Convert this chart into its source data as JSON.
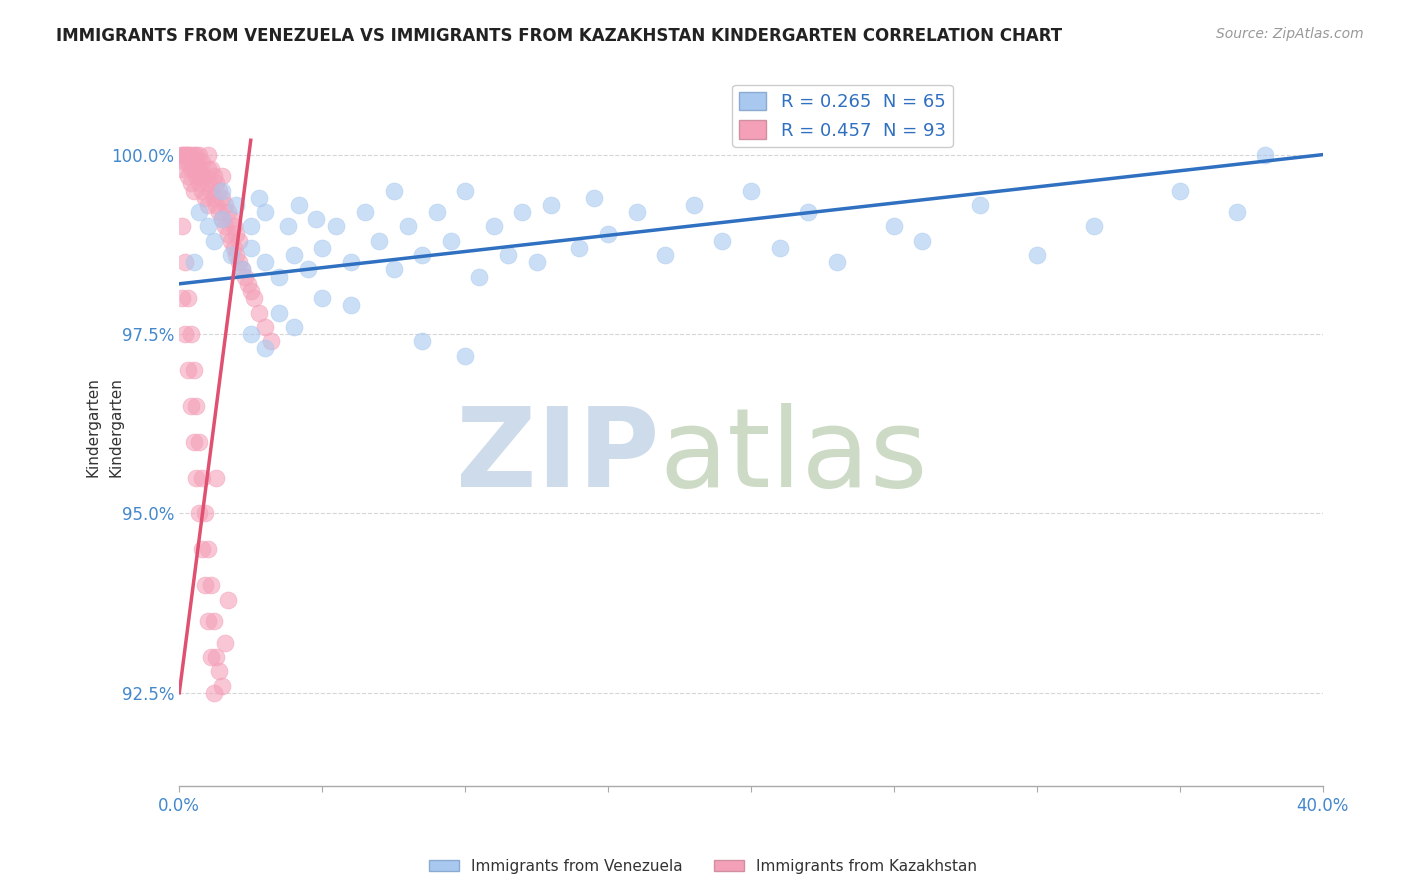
{
  "title": "IMMIGRANTS FROM VENEZUELA VS IMMIGRANTS FROM KAZAKHSTAN KINDERGARTEN CORRELATION CHART",
  "source": "Source: ZipAtlas.com",
  "ylabel": "Kindergarten",
  "yticks": [
    92.5,
    95.0,
    97.5,
    100.0
  ],
  "ytick_labels": [
    "92.5%",
    "95.0%",
    "97.5%",
    "100.0%"
  ],
  "xmin": 0.0,
  "xmax": 0.4,
  "ymin": 91.2,
  "ymax": 101.2,
  "legend1_label": "R = 0.265  N = 65",
  "legend2_label": "R = 0.457  N = 93",
  "legend_label1": "Immigrants from Venezuela",
  "legend_label2": "Immigrants from Kazakhstan",
  "color_venezuela": "#a8c8f0",
  "color_kazakhstan": "#f4a0b8",
  "trendline_color_venezuela": "#3070c0",
  "trendline_color_kazakhstan": "#e05070",
  "venezuela_trendline_x": [
    0.0,
    0.4
  ],
  "venezuela_trendline_y": [
    98.2,
    100.0
  ],
  "kazakhstan_trendline_x": [
    0.0,
    0.025
  ],
  "kazakhstan_trendline_y": [
    92.5,
    100.2
  ],
  "venezuela_x": [
    0.005,
    0.007,
    0.01,
    0.012,
    0.015,
    0.015,
    0.018,
    0.02,
    0.022,
    0.025,
    0.025,
    0.028,
    0.03,
    0.03,
    0.035,
    0.038,
    0.04,
    0.042,
    0.045,
    0.048,
    0.05,
    0.055,
    0.06,
    0.065,
    0.07,
    0.075,
    0.075,
    0.08,
    0.085,
    0.09,
    0.095,
    0.1,
    0.105,
    0.11,
    0.115,
    0.12,
    0.125,
    0.13,
    0.14,
    0.145,
    0.15,
    0.16,
    0.17,
    0.18,
    0.19,
    0.2,
    0.21,
    0.22,
    0.23,
    0.25,
    0.26,
    0.28,
    0.3,
    0.32,
    0.35,
    0.37,
    0.025,
    0.03,
    0.035,
    0.04,
    0.05,
    0.06,
    0.085,
    0.1,
    0.38
  ],
  "venezuela_y": [
    98.5,
    99.2,
    99.0,
    98.8,
    99.5,
    99.1,
    98.6,
    99.3,
    98.4,
    99.0,
    98.7,
    99.4,
    98.5,
    99.2,
    98.3,
    99.0,
    98.6,
    99.3,
    98.4,
    99.1,
    98.7,
    99.0,
    98.5,
    99.2,
    98.8,
    98.4,
    99.5,
    99.0,
    98.6,
    99.2,
    98.8,
    99.5,
    98.3,
    99.0,
    98.6,
    99.2,
    98.5,
    99.3,
    98.7,
    99.4,
    98.9,
    99.2,
    98.6,
    99.3,
    98.8,
    99.5,
    98.7,
    99.2,
    98.5,
    99.0,
    98.8,
    99.3,
    98.6,
    99.0,
    99.5,
    99.2,
    97.5,
    97.3,
    97.8,
    97.6,
    98.0,
    97.9,
    97.4,
    97.2,
    100.0
  ],
  "kazakhstan_x": [
    0.001,
    0.001,
    0.001,
    0.002,
    0.002,
    0.002,
    0.003,
    0.003,
    0.003,
    0.003,
    0.004,
    0.004,
    0.004,
    0.005,
    0.005,
    0.005,
    0.005,
    0.006,
    0.006,
    0.006,
    0.007,
    0.007,
    0.007,
    0.008,
    0.008,
    0.008,
    0.009,
    0.009,
    0.01,
    0.01,
    0.01,
    0.01,
    0.011,
    0.011,
    0.012,
    0.012,
    0.013,
    0.013,
    0.014,
    0.014,
    0.015,
    0.015,
    0.015,
    0.016,
    0.016,
    0.017,
    0.017,
    0.018,
    0.018,
    0.019,
    0.019,
    0.02,
    0.02,
    0.021,
    0.021,
    0.022,
    0.023,
    0.024,
    0.025,
    0.026,
    0.028,
    0.03,
    0.032,
    0.001,
    0.002,
    0.003,
    0.004,
    0.005,
    0.006,
    0.007,
    0.008,
    0.009,
    0.01,
    0.011,
    0.012,
    0.013,
    0.001,
    0.002,
    0.003,
    0.004,
    0.005,
    0.006,
    0.007,
    0.008,
    0.009,
    0.01,
    0.011,
    0.012,
    0.013,
    0.014,
    0.015,
    0.016,
    0.017
  ],
  "kazakhstan_y": [
    100.0,
    99.8,
    100.0,
    100.0,
    99.9,
    100.0,
    100.0,
    99.7,
    99.9,
    100.0,
    99.8,
    100.0,
    99.6,
    99.9,
    100.0,
    99.5,
    99.8,
    99.7,
    99.9,
    100.0,
    99.6,
    99.8,
    100.0,
    99.5,
    99.7,
    99.9,
    99.4,
    99.7,
    99.3,
    99.6,
    99.8,
    100.0,
    99.5,
    99.8,
    99.4,
    99.7,
    99.3,
    99.6,
    99.2,
    99.5,
    99.1,
    99.4,
    99.7,
    99.0,
    99.3,
    98.9,
    99.2,
    98.8,
    99.1,
    98.7,
    99.0,
    98.6,
    98.9,
    98.5,
    98.8,
    98.4,
    98.3,
    98.2,
    98.1,
    98.0,
    97.8,
    97.6,
    97.4,
    98.0,
    97.5,
    97.0,
    96.5,
    96.0,
    95.5,
    95.0,
    94.5,
    94.0,
    93.5,
    93.0,
    92.5,
    95.5,
    99.0,
    98.5,
    98.0,
    97.5,
    97.0,
    96.5,
    96.0,
    95.5,
    95.0,
    94.5,
    94.0,
    93.5,
    93.0,
    92.8,
    92.6,
    93.2,
    93.8
  ]
}
